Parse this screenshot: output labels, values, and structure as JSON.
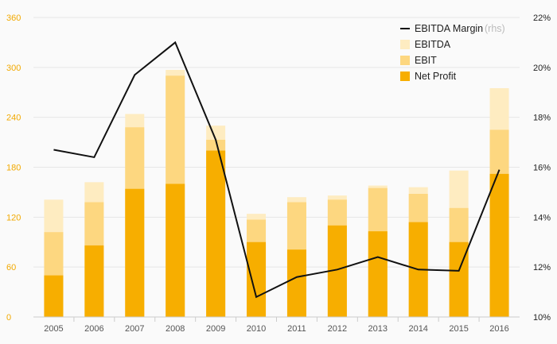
{
  "chart_data": {
    "type": "bar",
    "stacked": true,
    "categories": [
      "2005",
      "2006",
      "2007",
      "2008",
      "2009",
      "2010",
      "2011",
      "2012",
      "2013",
      "2014",
      "2015",
      "2016"
    ],
    "series": [
      {
        "name": "Net Profit",
        "values": [
          50,
          86,
          154,
          160,
          200,
          90,
          81,
          110,
          103,
          114,
          90,
          172
        ]
      },
      {
        "name": "EBIT",
        "values": [
          102,
          138,
          228,
          290,
          213,
          117,
          138,
          141,
          155,
          148,
          131,
          225
        ]
      },
      {
        "name": "EBITDA",
        "values": [
          141,
          162,
          244,
          297,
          230,
          124,
          144,
          146,
          158,
          156,
          176,
          275
        ]
      }
    ],
    "line_series": {
      "name": "EBITDA Margin",
      "name_suffix": "(rhs)",
      "axis": "right",
      "values": [
        16.7,
        16.4,
        19.7,
        21.0,
        17.1,
        10.8,
        11.6,
        11.9,
        12.4,
        11.9,
        11.85,
        15.9
      ]
    },
    "ylim": [
      0,
      360
    ],
    "y_ticks": [
      "0",
      "60",
      "120",
      "180",
      "240",
      "300",
      "360"
    ],
    "y2lim": [
      10,
      22
    ],
    "y2_ticks": [
      "10%",
      "12%",
      "14%",
      "16%",
      "18%",
      "20%",
      "22%"
    ],
    "legend_position": "top-right",
    "grid": true,
    "colors": {
      "net_profit": "#f7ae00",
      "ebit": "#fdd780",
      "ebitda": "#feecc1",
      "line": "#111111",
      "left_axis_text": "#f2a900",
      "grid": "#e6e6e6"
    }
  }
}
